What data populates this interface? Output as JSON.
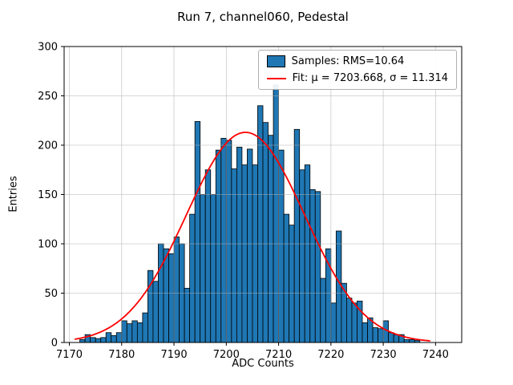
{
  "chart_data": {
    "type": "bar",
    "subtype": "histogram-with-gaussian-fit",
    "title": "Run 7, channel060, Pedestal",
    "xlabel": "ADC Counts",
    "ylabel": "Entries",
    "xlim": [
      7169,
      7245
    ],
    "ylim": [
      0,
      300
    ],
    "xticks": [
      7170,
      7180,
      7190,
      7200,
      7210,
      7220,
      7230,
      7240
    ],
    "yticks": [
      0,
      50,
      100,
      150,
      200,
      250,
      300
    ],
    "grid": true,
    "bin_start": 7172,
    "bin_width": 1,
    "counts": [
      3,
      8,
      5,
      4,
      5,
      10,
      7,
      10,
      22,
      19,
      22,
      20,
      30,
      73,
      62,
      100,
      95,
      90,
      107,
      100,
      55,
      130,
      224,
      150,
      175,
      150,
      195,
      207,
      205,
      176,
      198,
      180,
      196,
      180,
      240,
      223,
      210,
      261,
      195,
      130,
      119,
      216,
      175,
      180,
      155,
      153,
      65,
      95,
      40,
      113,
      60,
      45,
      40,
      42,
      20,
      25,
      15,
      14,
      22,
      10,
      8,
      8,
      3,
      3,
      2
    ],
    "rms": 10.64,
    "fit": {
      "type": "gaussian",
      "mu": 7203.668,
      "sigma": 11.314,
      "amplitude": 213,
      "x_start": 7171,
      "x_end": 7239
    },
    "legend": [
      {
        "label": "Samples: RMS=10.64",
        "swatch": "bar"
      },
      {
        "label": "Fit: μ = 7203.668, σ = 11.314",
        "swatch": "line"
      }
    ],
    "colors": {
      "bar": "#1f77b4",
      "bar_edge": "#000000",
      "fit": "#ff0000",
      "grid": "#b0b0b0",
      "frame": "#000000"
    },
    "legend_position": "upper right"
  }
}
